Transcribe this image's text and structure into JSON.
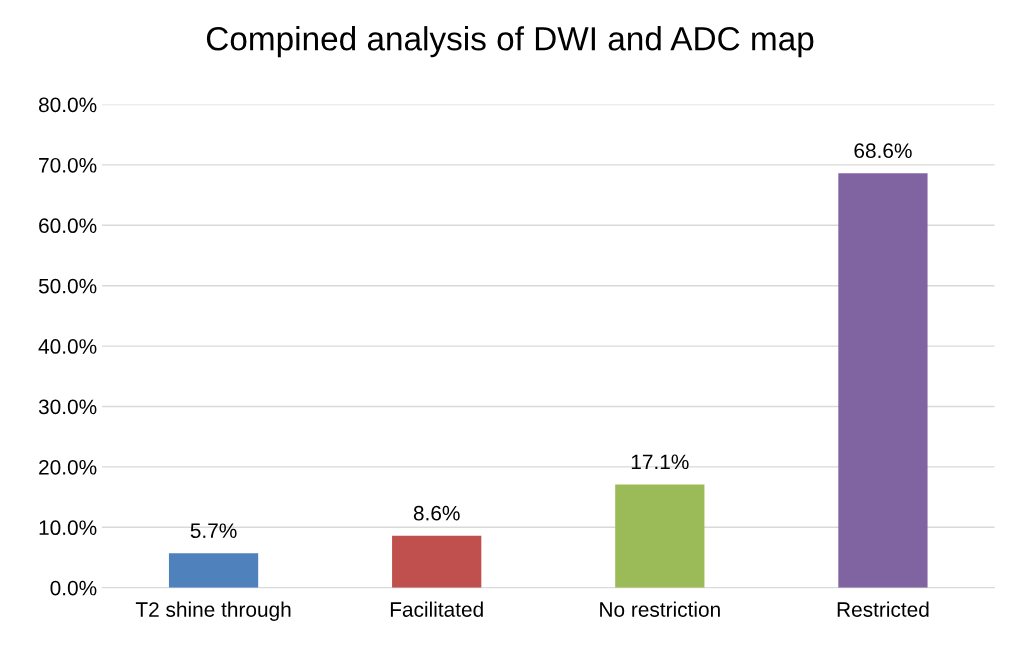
{
  "chart_data": {
    "type": "bar",
    "title": "Compined analysis of DWI and ADC map",
    "categories": [
      "T2 shine through",
      "Facilitated",
      "No restriction",
      "Restricted"
    ],
    "values": [
      5.7,
      8.6,
      17.1,
      68.6
    ],
    "colors": [
      "#4f81bd",
      "#c0504d",
      "#9bbb59",
      "#8064a2"
    ],
    "value_labels": [
      "5.7%",
      "8.6%",
      "17.1%",
      "68.6%"
    ],
    "ylim": [
      0,
      80
    ],
    "yticks": [
      {
        "value": 0,
        "label": "0.0%"
      },
      {
        "value": 10,
        "label": "10.0%"
      },
      {
        "value": 20,
        "label": "20.0%"
      },
      {
        "value": 30,
        "label": "30.0%"
      },
      {
        "value": 40,
        "label": "40.0%"
      },
      {
        "value": 50,
        "label": "50.0%"
      },
      {
        "value": 60,
        "label": "60.0%"
      },
      {
        "value": 70,
        "label": "70.0%"
      },
      {
        "value": 80,
        "label": "80.0%"
      }
    ],
    "grid": "y",
    "legend": false
  }
}
